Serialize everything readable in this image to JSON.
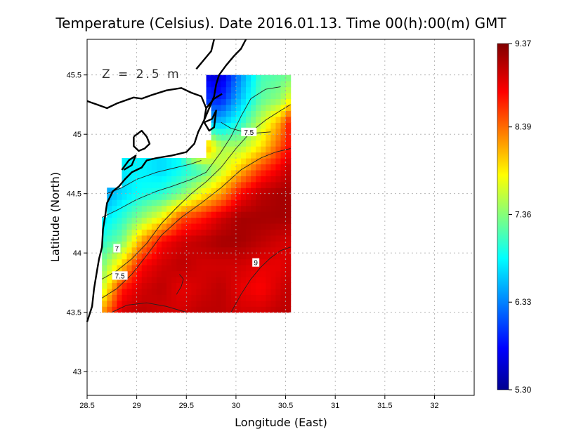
{
  "chart_data": {
    "type": "heatmap",
    "title": "Temperature (Celsius). Date 2016.01.13. Time 00(h):00(m)  GMT",
    "xlabel": "Longitude (East)",
    "ylabel": "Latitude (North)",
    "depth_label": "Z = 2.5 m",
    "xlim": [
      28.5,
      32.4
    ],
    "ylim": [
      42.8,
      45.8
    ],
    "x_ticks": [
      "28.5",
      "29",
      "29.5",
      "30",
      "30.5",
      "31",
      "31.5",
      "32"
    ],
    "y_ticks": [
      "43",
      "43.5",
      "44",
      "44.5",
      "45",
      "45.5"
    ],
    "grid": true,
    "colorbar": {
      "min": 5.3,
      "max": 9.37,
      "ticks": [
        "5.30",
        "6.33",
        "7.36",
        "8.39",
        "9.37"
      ],
      "colormap": "jet",
      "colors": [
        "#00008f",
        "#0000ff",
        "#00ffff",
        "#ffff00",
        "#ff0000",
        "#800000"
      ]
    },
    "data_extent": {
      "lon": [
        28.65,
        30.55
      ],
      "lat": [
        43.5,
        45.5
      ]
    },
    "field_rows_lat": [
      45.5,
      45.3,
      45.1,
      44.9,
      44.7,
      44.5,
      44.3,
      44.1,
      43.9,
      43.7,
      43.5
    ],
    "field_cols_lon": [
      28.65,
      28.85,
      29.05,
      29.25,
      29.45,
      29.65,
      29.85,
      30.05,
      30.25,
      30.45,
      30.55
    ],
    "field_values": [
      [
        null,
        null,
        null,
        null,
        null,
        null,
        5.6,
        6.4,
        7.1,
        7.2,
        7.3
      ],
      [
        null,
        null,
        null,
        null,
        null,
        6.0,
        5.9,
        6.6,
        7.2,
        7.4,
        7.8
      ],
      [
        null,
        null,
        null,
        null,
        null,
        6.6,
        6.6,
        7.0,
        7.6,
        8.2,
        8.8
      ],
      [
        null,
        null,
        null,
        null,
        null,
        8.4,
        7.5,
        7.5,
        7.9,
        8.5,
        8.8
      ],
      [
        null,
        null,
        6.8,
        6.7,
        6.9,
        7.1,
        7.6,
        8.1,
        8.6,
        8.9,
        9.1
      ],
      [
        6.4,
        6.7,
        6.9,
        7.0,
        7.3,
        7.8,
        8.2,
        8.8,
        9.1,
        9.2,
        9.2
      ],
      [
        6.7,
        7.0,
        7.4,
        7.8,
        8.5,
        8.7,
        9.0,
        9.2,
        9.2,
        9.2,
        9.2
      ],
      [
        7.0,
        7.3,
        8.2,
        8.8,
        9.0,
        9.1,
        9.2,
        9.2,
        9.1,
        9.0,
        9.0
      ],
      [
        7.3,
        8.0,
        8.8,
        9.0,
        9.1,
        9.0,
        9.0,
        9.0,
        8.9,
        8.9,
        9.0
      ],
      [
        7.6,
        8.7,
        9.0,
        9.1,
        8.9,
        9.0,
        9.1,
        8.9,
        8.8,
        9.0,
        9.1
      ],
      [
        8.2,
        9.0,
        9.1,
        9.0,
        9.0,
        9.1,
        9.1,
        9.0,
        9.0,
        9.1,
        9.1
      ]
    ],
    "contour_labels": [
      {
        "text": "7.5",
        "lon": 30.13,
        "lat": 45.02
      },
      {
        "text": "7",
        "lon": 28.8,
        "lat": 44.04
      },
      {
        "text": "7.5",
        "lon": 28.83,
        "lat": 43.81
      },
      {
        "text": "9",
        "lon": 30.2,
        "lat": 43.92
      }
    ]
  }
}
